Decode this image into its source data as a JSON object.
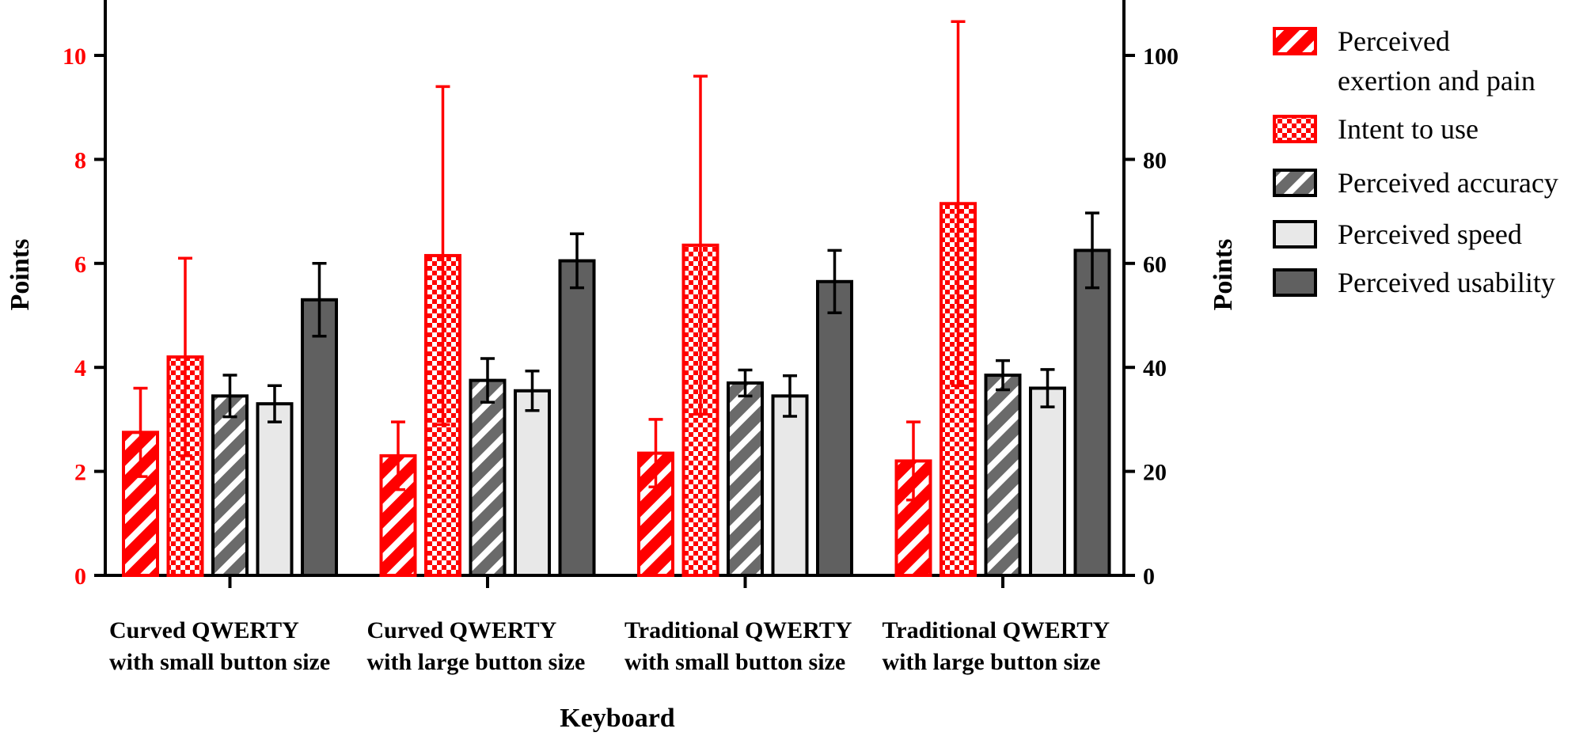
{
  "chart_data": {
    "type": "bar",
    "title": "",
    "xlabel": "Keyboard",
    "ylabel_left": "Points",
    "ylabel_right": "Points",
    "ylim_left": [
      0,
      11
    ],
    "ylim_right": [
      0,
      110
    ],
    "yticks_left": [
      "0",
      "2",
      "4",
      "6",
      "8",
      "10"
    ],
    "yticks_right": [
      "0",
      "20",
      "40",
      "60",
      "80",
      "100"
    ],
    "categories": [
      [
        "Curved QWERTY",
        "with small button size"
      ],
      [
        "Curved QWERTY",
        "with large button size"
      ],
      [
        "Traditional QWERTY",
        "with small button size"
      ],
      [
        "Traditional QWERTY",
        "with large button size"
      ]
    ],
    "series": [
      {
        "name": "Perceived exertion and pain",
        "legend_lines": [
          "Perceived",
          "exertion and pain"
        ],
        "axis": "left",
        "pattern": "diag-red",
        "values": [
          2.75,
          2.3,
          2.35,
          2.2
        ],
        "errors": [
          0.85,
          0.65,
          0.65,
          0.75
        ]
      },
      {
        "name": "Intent to use",
        "legend_lines": [
          "Intent to use"
        ],
        "axis": "left",
        "pattern": "check-red",
        "values": [
          4.2,
          6.15,
          6.35,
          7.15
        ],
        "errors": [
          1.9,
          3.25,
          3.25,
          3.5
        ]
      },
      {
        "name": "Perceived accuracy",
        "legend_lines": [
          "Perceived accuracy"
        ],
        "axis": "right",
        "pattern": "diag-gray",
        "values": [
          34.5,
          37.5,
          37,
          38.5
        ],
        "errors": [
          4,
          4.2,
          2.5,
          2.8
        ]
      },
      {
        "name": "Perceived speed",
        "legend_lines": [
          "Perceived speed"
        ],
        "axis": "right",
        "pattern": "light-gray",
        "values": [
          33,
          35.5,
          34.5,
          36
        ],
        "errors": [
          3.5,
          3.8,
          3.9,
          3.6
        ]
      },
      {
        "name": "Perceived usability",
        "legend_lines": [
          "Perceived usability"
        ],
        "axis": "right",
        "pattern": "dark-gray",
        "values": [
          53,
          60.5,
          56.5,
          62.5
        ],
        "errors": [
          7,
          5.2,
          6,
          7.2
        ]
      }
    ],
    "colors": {
      "red": "#ff0000",
      "dark_gray": "#606060",
      "light_gray": "#e8e8e8",
      "mid_gray": "#707070",
      "axis": "#000000"
    }
  }
}
